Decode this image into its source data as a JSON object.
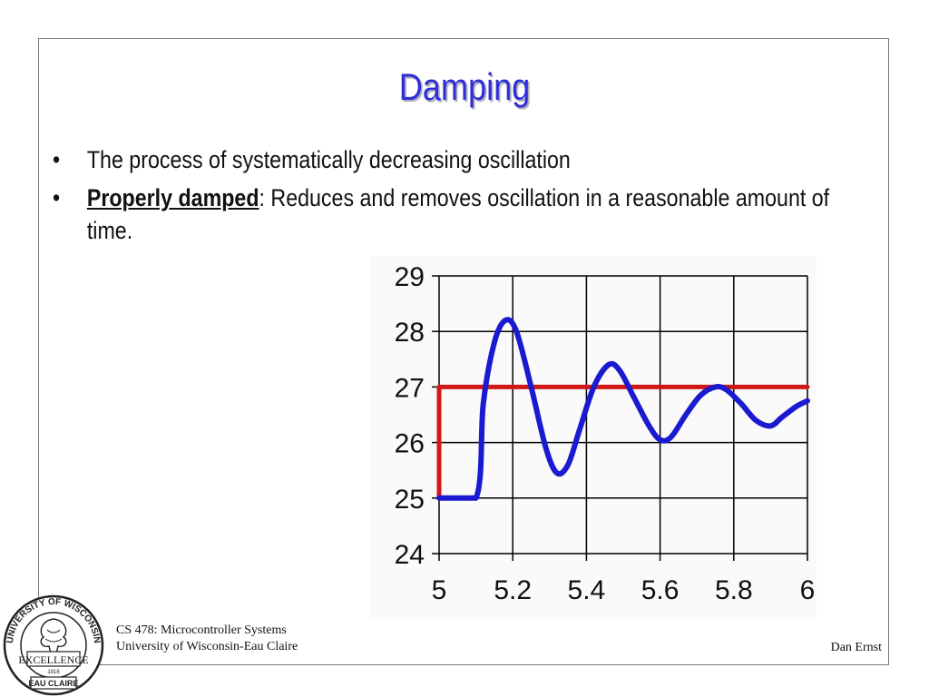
{
  "slide": {
    "title": "Damping",
    "bullets": [
      {
        "marker": "•",
        "text": "The process of systematically decreasing oscillation"
      },
      {
        "marker": "•",
        "emph": "Properly damped",
        "text": ":  Reduces and removes oscillation in a reasonable amount of time."
      }
    ]
  },
  "footer": {
    "course": "CS 478: Microcontroller Systems",
    "university": "University of Wisconsin-Eau Claire",
    "author": "Dan Ernst"
  },
  "logo": {
    "top_text": "UNIVERSITY OF WISCONSIN",
    "middle_text": "EXCELLENCE",
    "year": "1916",
    "bottom_text": "EAU CLAIRE"
  },
  "colors": {
    "title": "#2f2fd8",
    "response_line": "#1a1ad0",
    "setpoint_line": "#d01818",
    "grid": "#000000"
  },
  "chart_data": {
    "type": "line",
    "title": "",
    "xlabel": "",
    "ylabel": "",
    "xlim": [
      5,
      6
    ],
    "ylim": [
      24,
      29
    ],
    "x_ticks": [
      5,
      5.2,
      5.4,
      5.6,
      5.8,
      6
    ],
    "x_tick_labels": [
      "5",
      "5.2",
      "5.4",
      "5.6",
      "5.8",
      "6"
    ],
    "y_ticks": [
      24,
      25,
      26,
      27,
      28,
      29
    ],
    "y_tick_labels": [
      "24",
      "25",
      "26",
      "27",
      "28",
      "29"
    ],
    "grid": true,
    "series": [
      {
        "color": "#d01818",
        "x": [
          5,
          5,
          6
        ],
        "y": [
          25,
          27,
          27
        ]
      },
      {
        "color": "#1a1ad0",
        "x": [
          5,
          5.1,
          5.12,
          5.15,
          5.18,
          5.21,
          5.25,
          5.29,
          5.32,
          5.35,
          5.38,
          5.42,
          5.46,
          5.49,
          5.53,
          5.57,
          5.6,
          5.63,
          5.67,
          5.71,
          5.75,
          5.78,
          5.82,
          5.86,
          5.9,
          5.93,
          5.97,
          6
        ],
        "y": [
          25,
          25,
          26.7,
          27.8,
          28.2,
          28.0,
          27.0,
          25.9,
          25.45,
          25.6,
          26.2,
          27.0,
          27.4,
          27.3,
          26.8,
          26.3,
          26.05,
          26.1,
          26.5,
          26.85,
          27.0,
          26.95,
          26.7,
          26.4,
          26.3,
          26.45,
          26.65,
          26.75
        ]
      }
    ]
  }
}
